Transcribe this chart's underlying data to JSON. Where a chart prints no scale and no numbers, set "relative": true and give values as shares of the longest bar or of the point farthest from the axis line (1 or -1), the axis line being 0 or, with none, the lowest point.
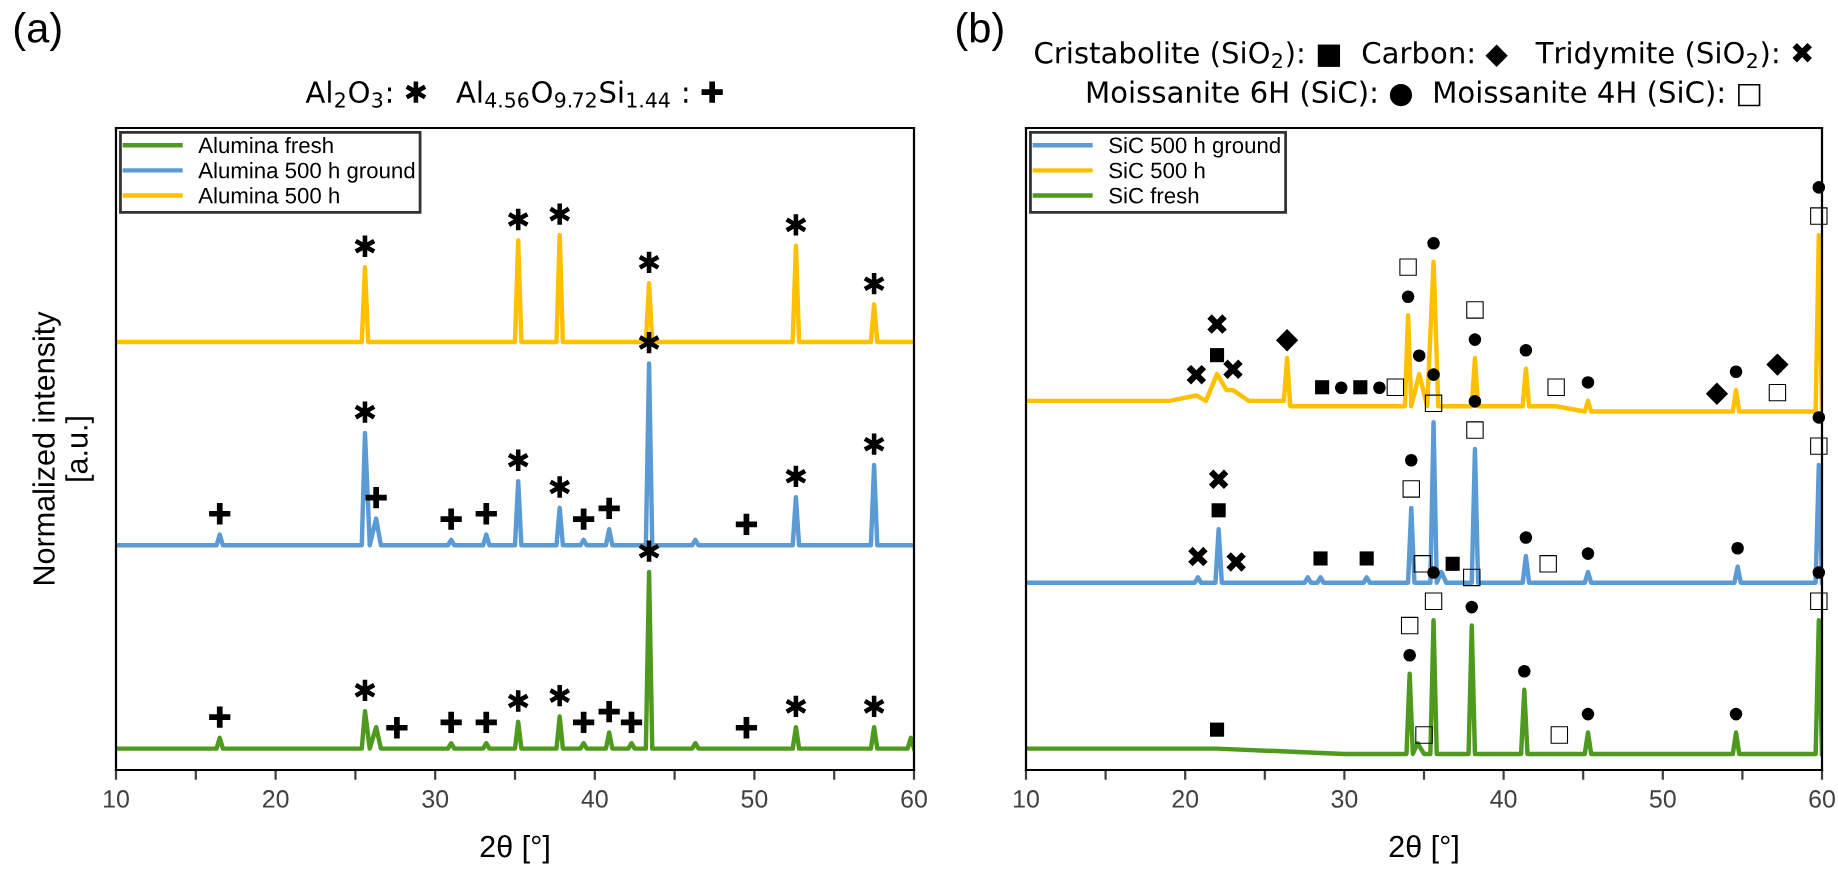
{
  "chart_data": [
    {
      "type": "line",
      "title": "(a)",
      "subtitle": "Al$_{2}$O$_{3}$: ✱   Al$_{4.56}$O$_{9.72}$Si$_{1.44}$ : ✚",
      "xlabel": "2θ [°]",
      "ylabel": "Normalized intensity\n[a.u.]",
      "relative": true,
      "tick_labels": "x",
      "grid": false,
      "legend": "top left",
      "marker": "none",
      "line_style": "solid",
      "xlim": [
        10,
        60
      ],
      "xticks": [
        10,
        {
          "value": 15,
          "label": null
        },
        20,
        {
          "value": 25,
          "label": null
        },
        30,
        {
          "value": 35,
          "label": null
        },
        40,
        {
          "value": 45,
          "label": null
        },
        50,
        {
          "value": 55,
          "label": null
        },
        60
      ],
      "series": [
        {
          "name": "Alumina fresh",
          "color": "#4e9a1e",
          "x": [
            10,
            16.3,
            16.5,
            16.7,
            25.4,
            25.6,
            25.9,
            26.3,
            26.6,
            27.6,
            30.8,
            31.0,
            31.2,
            33.0,
            33.2,
            33.4,
            35.0,
            35.2,
            35.4,
            37.6,
            37.8,
            38.0,
            39.1,
            39.3,
            39.5,
            40.7,
            40.9,
            41.1,
            42.1,
            42.3,
            42.5,
            43.2,
            43.4,
            43.6,
            46.1,
            46.3,
            46.5,
            49.5,
            52.4,
            52.6,
            52.8,
            57.3,
            57.5,
            57.7,
            59.6,
            59.8,
            60
          ],
          "values": [
            0.04,
            0.04,
            0.06,
            0.04,
            0.04,
            0.11,
            0.04,
            0.08,
            0.04,
            0.04,
            0.04,
            0.05,
            0.04,
            0.04,
            0.05,
            0.04,
            0.04,
            0.09,
            0.04,
            0.04,
            0.1,
            0.04,
            0.04,
            0.05,
            0.04,
            0.04,
            0.07,
            0.04,
            0.04,
            0.05,
            0.04,
            0.04,
            0.37,
            0.04,
            0.04,
            0.05,
            0.04,
            0.04,
            0.04,
            0.08,
            0.04,
            0.04,
            0.08,
            0.04,
            0.04,
            0.06,
            0.04
          ]
        },
        {
          "name": "Alumina 500 h ground",
          "color": "#5b9bd5",
          "x": [
            10,
            16.3,
            16.5,
            16.7,
            25.4,
            25.6,
            25.9,
            26.3,
            26.6,
            30.8,
            31.0,
            31.2,
            33.0,
            33.2,
            33.4,
            35.0,
            35.2,
            35.4,
            37.6,
            37.8,
            38.0,
            39.1,
            39.3,
            39.5,
            40.7,
            40.9,
            41.1,
            43.2,
            43.4,
            43.6,
            46.1,
            46.3,
            46.5,
            49.5,
            52.4,
            52.6,
            52.8,
            57.3,
            57.5,
            57.7,
            60
          ],
          "values": [
            0.42,
            0.42,
            0.44,
            0.42,
            0.42,
            0.63,
            0.42,
            0.47,
            0.42,
            0.42,
            0.43,
            0.42,
            0.42,
            0.44,
            0.42,
            0.42,
            0.54,
            0.42,
            0.42,
            0.49,
            0.42,
            0.42,
            0.43,
            0.42,
            0.42,
            0.45,
            0.42,
            0.42,
            0.76,
            0.42,
            0.42,
            0.43,
            0.42,
            0.42,
            0.42,
            0.51,
            0.42,
            0.42,
            0.57,
            0.42,
            0.42
          ]
        },
        {
          "name": "Alumina 500 h",
          "color": "#ffc000",
          "x": [
            10,
            25.4,
            25.6,
            25.8,
            35.0,
            35.2,
            35.4,
            37.6,
            37.8,
            38.0,
            43.2,
            43.4,
            43.6,
            52.4,
            52.6,
            52.8,
            57.3,
            57.5,
            57.7,
            60
          ],
          "values": [
            0.8,
            0.8,
            0.94,
            0.8,
            0.8,
            0.99,
            0.8,
            0.8,
            1.0,
            0.8,
            0.8,
            0.91,
            0.8,
            0.8,
            0.98,
            0.8,
            0.8,
            0.87,
            0.8,
            0.8
          ]
        }
      ],
      "annotations": [
        {
          "text": "✱",
          "x": 25.6,
          "y": 0.94
        },
        {
          "text": "✱",
          "x": 35.2,
          "y": 0.99
        },
        {
          "text": "✱",
          "x": 37.8,
          "y": 1.0
        },
        {
          "text": "✱",
          "x": 43.4,
          "y": 0.91
        },
        {
          "text": "✱",
          "x": 52.6,
          "y": 0.98
        },
        {
          "text": "✱",
          "x": 57.5,
          "y": 0.87
        },
        {
          "text": "✱",
          "x": 43.4,
          "y": 0.76
        },
        {
          "text": "✱",
          "x": 25.6,
          "y": 0.63
        },
        {
          "text": "✚",
          "x": 16.5,
          "y": 0.44
        },
        {
          "text": "✚",
          "x": 26.3,
          "y": 0.47
        },
        {
          "text": "✚",
          "x": 31.0,
          "y": 0.43
        },
        {
          "text": "✚",
          "x": 33.2,
          "y": 0.44
        },
        {
          "text": "✱",
          "x": 35.2,
          "y": 0.54
        },
        {
          "text": "✱",
          "x": 37.8,
          "y": 0.49
        },
        {
          "text": "✚",
          "x": 39.3,
          "y": 0.43
        },
        {
          "text": "✚",
          "x": 40.9,
          "y": 0.45
        },
        {
          "text": "✚",
          "x": 49.5,
          "y": 0.42
        },
        {
          "text": "✱",
          "x": 52.6,
          "y": 0.51
        },
        {
          "text": "✱",
          "x": 57.5,
          "y": 0.57
        },
        {
          "text": "✱",
          "x": 43.4,
          "y": 0.37
        },
        {
          "text": "✚",
          "x": 16.5,
          "y": 0.06
        },
        {
          "text": "✱",
          "x": 25.6,
          "y": 0.11
        },
        {
          "text": "✚",
          "x": 27.6,
          "y": 0.04
        },
        {
          "text": "✚",
          "x": 31.0,
          "y": 0.05
        },
        {
          "text": "✚",
          "x": 33.2,
          "y": 0.05
        },
        {
          "text": "✱",
          "x": 35.2,
          "y": 0.09
        },
        {
          "text": "✱",
          "x": 37.8,
          "y": 0.1
        },
        {
          "text": "✚",
          "x": 39.3,
          "y": 0.05
        },
        {
          "text": "✚",
          "x": 40.9,
          "y": 0.07
        },
        {
          "text": "✚",
          "x": 42.3,
          "y": 0.05
        },
        {
          "text": "✚",
          "x": 49.5,
          "y": 0.04
        },
        {
          "text": "✱",
          "x": 52.6,
          "y": 0.08
        },
        {
          "text": "✱",
          "x": 57.5,
          "y": 0.08
        }
      ]
    },
    {
      "type": "line",
      "title": "(b)",
      "subtitle": "Cristabolite (SiO$_{2}$): ■  Carbon: ◆   Tridymite (SiO$_{2}$): ✖\nMoissanite 6H (SiC): ●  Moissanite 4H (SiC): □",
      "xlabel": "2θ [°]",
      "relative": true,
      "tick_labels": "x",
      "grid": false,
      "legend": "top left",
      "marker": "none",
      "line_style": "solid",
      "xlim": [
        10,
        60
      ],
      "xticks": [
        10,
        {
          "value": 15,
          "label": null
        },
        20,
        {
          "value": 25,
          "label": null
        },
        30,
        {
          "value": 35,
          "label": null
        },
        40,
        {
          "value": 45,
          "label": null
        },
        50,
        {
          "value": 55,
          "label": null
        },
        60
      ],
      "series": [
        {
          "name": "SiC 500 h ground",
          "color": "#5b9bd5",
          "x": [
            10,
            20.6,
            20.8,
            21.0,
            21.9,
            22.1,
            22.3,
            23.2,
            27.5,
            27.7,
            27.9,
            28.3,
            28.5,
            28.7,
            31.2,
            31.4,
            31.6,
            34.0,
            34.2,
            34.4,
            34.9,
            35.4,
            35.6,
            35.8,
            36.1,
            36.4,
            36.8,
            38.0,
            38.2,
            38.4,
            41.2,
            41.4,
            41.6,
            42.8,
            45.1,
            45.3,
            45.5,
            54.5,
            54.7,
            54.9,
            59.6,
            59.8,
            60
          ],
          "values": [
            0.35,
            0.35,
            0.36,
            0.35,
            0.35,
            0.45,
            0.35,
            0.35,
            0.35,
            0.36,
            0.35,
            0.35,
            0.36,
            0.35,
            0.35,
            0.36,
            0.35,
            0.35,
            0.49,
            0.35,
            0.35,
            0.35,
            0.65,
            0.35,
            0.37,
            0.35,
            0.35,
            0.35,
            0.6,
            0.35,
            0.35,
            0.4,
            0.35,
            0.35,
            0.35,
            0.37,
            0.35,
            0.35,
            0.38,
            0.35,
            0.35,
            0.57,
            0.35
          ]
        },
        {
          "name": "SiC 500 h",
          "color": "#ffc000",
          "x": [
            10,
            15,
            19,
            20.7,
            21.3,
            22.0,
            22.6,
            23.0,
            24,
            26.2,
            26.4,
            26.6,
            28.6,
            29.8,
            31.0,
            32.2,
            33.2,
            33.8,
            34.0,
            34.2,
            34.7,
            35.2,
            35.6,
            35.9,
            38.0,
            38.2,
            38.4,
            41.2,
            41.4,
            41.6,
            43.3,
            45.1,
            45.3,
            45.5,
            50,
            53.4,
            54.4,
            54.6,
            54.8,
            57.2,
            59.6,
            59.8,
            60
          ],
          "values": [
            0.69,
            0.69,
            0.69,
            0.7,
            0.69,
            0.74,
            0.71,
            0.71,
            0.69,
            0.69,
            0.77,
            0.68,
            0.68,
            0.68,
            0.68,
            0.68,
            0.68,
            0.68,
            0.85,
            0.68,
            0.74,
            0.68,
            0.95,
            0.68,
            0.68,
            0.77,
            0.68,
            0.68,
            0.75,
            0.68,
            0.68,
            0.67,
            0.69,
            0.67,
            0.67,
            0.67,
            0.67,
            0.71,
            0.67,
            0.67,
            0.67,
            1.0,
            0.67
          ]
        },
        {
          "name": "SiC fresh",
          "color": "#4e9a1e",
          "x": [
            10,
            20,
            22.0,
            30,
            33.9,
            34.1,
            34.3,
            34.6,
            35.0,
            35.4,
            35.6,
            35.8,
            37.8,
            38.0,
            38.2,
            41.1,
            41.3,
            41.5,
            43.5,
            45.1,
            45.3,
            45.5,
            54.4,
            54.6,
            54.8,
            59.6,
            59.8,
            60
          ],
          "values": [
            0.04,
            0.04,
            0.04,
            0.03,
            0.03,
            0.18,
            0.03,
            0.05,
            0.03,
            0.03,
            0.28,
            0.03,
            0.03,
            0.27,
            0.03,
            0.03,
            0.15,
            0.03,
            0.03,
            0.03,
            0.07,
            0.03,
            0.03,
            0.07,
            0.03,
            0.03,
            0.28,
            0.03
          ]
        }
      ],
      "annotations": [
        {
          "text": "✖",
          "x": 20.7,
          "y": 0.7
        },
        {
          "text": "■",
          "x": 22.0,
          "y": 0.74
        },
        {
          "text": "✖",
          "x": 22.0,
          "y": 0.74
        },
        {
          "text": "✖",
          "x": 23.0,
          "y": 0.71
        },
        {
          "text": "◆",
          "x": 26.4,
          "y": 0.77
        },
        {
          "text": "■",
          "x": 28.6,
          "y": 0.68
        },
        {
          "text": "●",
          "x": 29.8,
          "y": 0.68
        },
        {
          "text": "■",
          "x": 31.0,
          "y": 0.68
        },
        {
          "text": "●",
          "x": 32.2,
          "y": 0.68
        },
        {
          "text": "□",
          "x": 33.2,
          "y": 0.68
        },
        {
          "text": "●",
          "x": 34.0,
          "y": 0.85
        },
        {
          "text": "□",
          "x": 34.0,
          "y": 0.85
        },
        {
          "text": "●",
          "x": 34.7,
          "y": 0.74
        },
        {
          "text": "●",
          "x": 35.6,
          "y": 0.95
        },
        {
          "text": "●",
          "x": 38.2,
          "y": 0.77
        },
        {
          "text": "□",
          "x": 38.2,
          "y": 0.77
        },
        {
          "text": "●",
          "x": 41.4,
          "y": 0.75
        },
        {
          "text": "□",
          "x": 43.3,
          "y": 0.68
        },
        {
          "text": "●",
          "x": 45.3,
          "y": 0.69
        },
        {
          "text": "◆",
          "x": 53.4,
          "y": 0.67
        },
        {
          "text": "●",
          "x": 54.6,
          "y": 0.71
        },
        {
          "text": "□",
          "x": 57.2,
          "y": 0.67
        },
        {
          "text": "◆",
          "x": 57.2,
          "y": 0.67
        },
        {
          "text": "□",
          "x": 59.8,
          "y": 1.0
        },
        {
          "text": "●",
          "x": 59.8,
          "y": 1.0
        },
        {
          "text": "✖",
          "x": 20.8,
          "y": 0.36
        },
        {
          "text": "■",
          "x": 22.1,
          "y": 0.45
        },
        {
          "text": "✖",
          "x": 22.1,
          "y": 0.45
        },
        {
          "text": "✖",
          "x": 23.2,
          "y": 0.35
        },
        {
          "text": "■",
          "x": 28.5,
          "y": 0.36
        },
        {
          "text": "■",
          "x": 31.4,
          "y": 0.36
        },
        {
          "text": "□",
          "x": 34.2,
          "y": 0.49
        },
        {
          "text": "●",
          "x": 34.2,
          "y": 0.49
        },
        {
          "text": "□",
          "x": 34.9,
          "y": 0.35
        },
        {
          "text": "□",
          "x": 35.6,
          "y": 0.65
        },
        {
          "text": "●",
          "x": 35.6,
          "y": 0.65
        },
        {
          "text": "■",
          "x": 36.8,
          "y": 0.35
        },
        {
          "text": "□",
          "x": 38.2,
          "y": 0.6
        },
        {
          "text": "●",
          "x": 38.2,
          "y": 0.6
        },
        {
          "text": "●",
          "x": 41.4,
          "y": 0.4
        },
        {
          "text": "□",
          "x": 42.8,
          "y": 0.35
        },
        {
          "text": "●",
          "x": 45.3,
          "y": 0.37
        },
        {
          "text": "●",
          "x": 54.7,
          "y": 0.38
        },
        {
          "text": "□",
          "x": 59.8,
          "y": 0.57
        },
        {
          "text": "●",
          "x": 59.8,
          "y": 0.57
        },
        {
          "text": "■",
          "x": 22.0,
          "y": 0.04
        },
        {
          "text": "●",
          "x": 34.1,
          "y": 0.18
        },
        {
          "text": "□",
          "x": 34.1,
          "y": 0.18
        },
        {
          "text": "□",
          "x": 35.0,
          "y": 0.03
        },
        {
          "text": "□",
          "x": 35.6,
          "y": 0.28
        },
        {
          "text": "●",
          "x": 35.6,
          "y": 0.28
        },
        {
          "text": "●",
          "x": 38.0,
          "y": 0.27
        },
        {
          "text": "□",
          "x": 38.0,
          "y": 0.27
        },
        {
          "text": "●",
          "x": 41.3,
          "y": 0.15
        },
        {
          "text": "□",
          "x": 43.5,
          "y": 0.03
        },
        {
          "text": "●",
          "x": 45.3,
          "y": 0.07
        },
        {
          "text": "●",
          "x": 54.6,
          "y": 0.07
        },
        {
          "text": "□",
          "x": 59.8,
          "y": 0.28
        },
        {
          "text": "●",
          "x": 59.8,
          "y": 0.28
        }
      ]
    }
  ]
}
